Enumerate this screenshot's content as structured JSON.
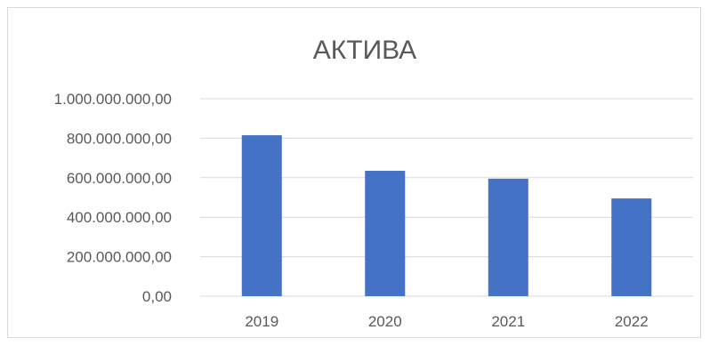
{
  "chart_data": {
    "type": "bar",
    "title": "АКТИВА",
    "xlabel": "",
    "ylabel": "",
    "categories": [
      "2019",
      "2020",
      "2021",
      "2022"
    ],
    "series": [
      {
        "values": [
          815000000,
          635000000,
          595000000,
          495000000
        ],
        "color": "#4472c4"
      }
    ],
    "ylim": [
      0,
      1000000000
    ],
    "y_ticks": [
      {
        "value": 0,
        "label": "0,00"
      },
      {
        "value": 200000000,
        "label": "200.000.000,00"
      },
      {
        "value": 400000000,
        "label": "400.000.000,00"
      },
      {
        "value": 600000000,
        "label": "600.000.000,00"
      },
      {
        "value": 800000000,
        "label": "800.000.000,00"
      },
      {
        "value": 1000000000,
        "label": "1.000.000.000,00"
      }
    ],
    "grid": true,
    "legend": "none",
    "colors": {
      "bar": "#4472c4",
      "grid": "#d9d9d9",
      "text": "#595959"
    }
  }
}
